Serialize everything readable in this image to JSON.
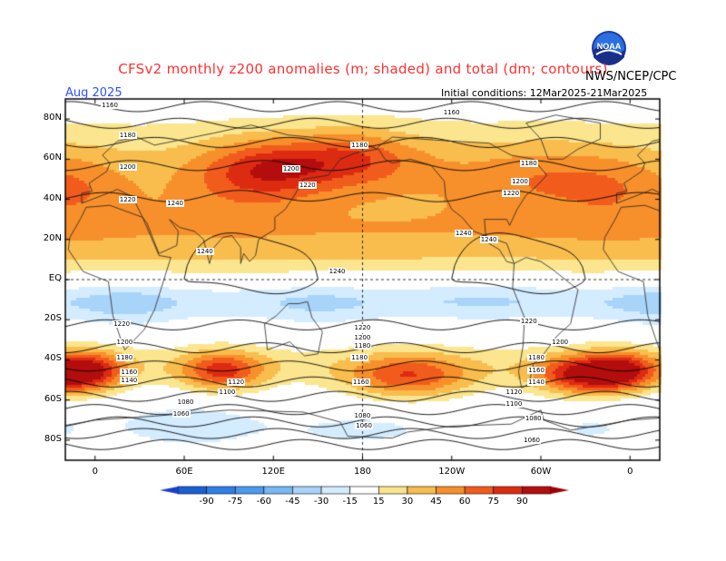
{
  "header": {
    "title": "CFSv2 monthly z200 anomalies (m; shaded) and total (dm; contours)",
    "agency": "NWS/NCEP/CPC",
    "month": "Aug 2025",
    "initial_conditions": "Initial conditions: 12Mar2025-21Mar2025",
    "logo_text": "NOAA"
  },
  "axes": {
    "lat_labels": [
      "80N",
      "60N",
      "40N",
      "20N",
      "EQ",
      "20S",
      "40S",
      "60S",
      "80S"
    ],
    "lon_labels": [
      "0",
      "60E",
      "120E",
      "180",
      "120W",
      "60W",
      "0"
    ]
  },
  "map": {
    "lat_values": [
      80,
      60,
      40,
      20,
      0,
      -20,
      -40,
      -60,
      -80
    ],
    "lon_values": [
      0,
      60,
      120,
      180,
      240,
      300,
      360
    ],
    "lat_range": [
      -90,
      90
    ],
    "lon_range": [
      -20,
      380
    ],
    "contour_labels": [
      {
        "text": "1160",
        "lon": 10,
        "lat": 87
      },
      {
        "text": "1160",
        "lon": 240,
        "lat": 83
      },
      {
        "text": "1180",
        "lon": 22,
        "lat": 72
      },
      {
        "text": "1180",
        "lon": 178,
        "lat": 67
      },
      {
        "text": "1180",
        "lon": 292,
        "lat": 58
      },
      {
        "text": "1200",
        "lon": 22,
        "lat": 56
      },
      {
        "text": "1200",
        "lon": 132,
        "lat": 55
      },
      {
        "text": "1200",
        "lon": 286,
        "lat": 49
      },
      {
        "text": "1220",
        "lon": 143,
        "lat": 47
      },
      {
        "text": "1220",
        "lon": 280,
        "lat": 43
      },
      {
        "text": "1220",
        "lon": 22,
        "lat": 40
      },
      {
        "text": "1240",
        "lon": 54,
        "lat": 38
      },
      {
        "text": "1240",
        "lon": 248,
        "lat": 23
      },
      {
        "text": "1240",
        "lon": 265,
        "lat": 20
      },
      {
        "text": "1240",
        "lon": 74,
        "lat": 14
      },
      {
        "text": "1240",
        "lon": 163,
        "lat": 4
      },
      {
        "text": "1220",
        "lon": 18,
        "lat": -22
      },
      {
        "text": "1220",
        "lon": 180,
        "lat": -24
      },
      {
        "text": "1220",
        "lon": 292,
        "lat": -21
      },
      {
        "text": "1200",
        "lon": 20,
        "lat": -31
      },
      {
        "text": "1200",
        "lon": 180,
        "lat": -29
      },
      {
        "text": "1200",
        "lon": 313,
        "lat": -31
      },
      {
        "text": "1180",
        "lon": 180,
        "lat": -33
      },
      {
        "text": "1180",
        "lon": 20,
        "lat": -39
      },
      {
        "text": "1180",
        "lon": 178,
        "lat": -39
      },
      {
        "text": "1180",
        "lon": 297,
        "lat": -39
      },
      {
        "text": "1160",
        "lon": 23,
        "lat": -46
      },
      {
        "text": "1160",
        "lon": 297,
        "lat": -45
      },
      {
        "text": "1140",
        "lon": 23,
        "lat": -50
      },
      {
        "text": "1140",
        "lon": 297,
        "lat": -51
      },
      {
        "text": "1120",
        "lon": 95,
        "lat": -51
      },
      {
        "text": "1160",
        "lon": 179,
        "lat": -51
      },
      {
        "text": "1120",
        "lon": 282,
        "lat": -56
      },
      {
        "text": "1100",
        "lon": 89,
        "lat": -56
      },
      {
        "text": "1100",
        "lon": 282,
        "lat": -62
      },
      {
        "text": "1080",
        "lon": 61,
        "lat": -61
      },
      {
        "text": "1060",
        "lon": 58,
        "lat": -67
      },
      {
        "text": "1080",
        "lon": 180,
        "lat": -68
      },
      {
        "text": "1080",
        "lon": 295,
        "lat": -69
      },
      {
        "text": "1060",
        "lon": 181,
        "lat": -73
      },
      {
        "text": "1060",
        "lon": 294,
        "lat": -80
      }
    ]
  },
  "colorbar": {
    "labels": [
      "-90",
      "-75",
      "-60",
      "-45",
      "-30",
      "-15",
      "15",
      "30",
      "45",
      "60",
      "75",
      "90"
    ],
    "colors": [
      "#1a5fd4",
      "#2f7fe8",
      "#4a9bf0",
      "#78b8f5",
      "#a8d4fa",
      "#d4ecff",
      "#ffffff",
      "#fbe58e",
      "#f9bd4e",
      "#f7902b",
      "#f15c1c",
      "#dd2b12",
      "#b30d0d"
    ],
    "low_end": "#1a3fd0",
    "high_end": "#a00000"
  },
  "colors": {
    "title": "#ff3030",
    "month": "#3050ff",
    "contour": "#000000",
    "grid": "#000000"
  }
}
